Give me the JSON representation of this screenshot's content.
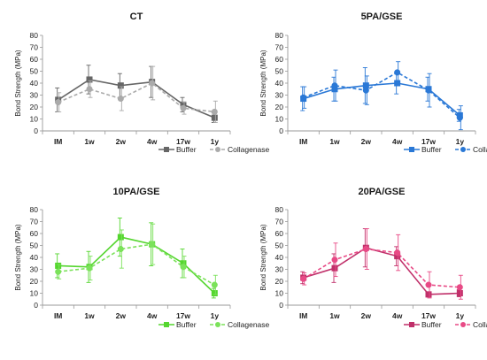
{
  "chart_data": [
    {
      "type": "line",
      "title": "CT",
      "ylabel": "Bond Strength (MPa)",
      "ylim": [
        0,
        80
      ],
      "yticks": [
        0,
        10,
        20,
        30,
        40,
        50,
        60,
        70,
        80
      ],
      "categories": [
        "IM",
        "1w",
        "2w",
        "4w",
        "17w",
        "1y"
      ],
      "series": [
        {
          "name": "Buffer",
          "color": "#666666",
          "marker": "square",
          "dashed": false,
          "values": [
            26,
            43,
            38,
            41,
            22,
            11
          ],
          "errors": [
            10,
            12,
            10,
            13,
            6,
            4
          ]
        },
        {
          "name": "Collagenase",
          "color": "#aaaaaa",
          "marker": "circle",
          "dashed": true,
          "values": [
            24,
            35,
            27,
            40,
            19,
            16
          ],
          "errors": [
            8,
            7,
            10,
            14,
            5,
            9
          ]
        }
      ]
    },
    {
      "type": "line",
      "title": "5PA/GSE",
      "ylabel": "Bond Strength (MPa)",
      "ylim": [
        0,
        80
      ],
      "yticks": [
        0,
        10,
        20,
        30,
        40,
        50,
        60,
        70,
        80
      ],
      "categories": [
        "IM",
        "1w",
        "2w",
        "4w",
        "17w",
        "1y"
      ],
      "series": [
        {
          "name": "Buffer",
          "color": "#2a78d6",
          "marker": "square",
          "dashed": false,
          "values": [
            27,
            35,
            38,
            40,
            35,
            13
          ],
          "errors": [
            10,
            10,
            15,
            9,
            10,
            5
          ]
        },
        {
          "name": "Collagenase",
          "color": "#2a78d6",
          "marker": "circle",
          "dashed": true,
          "values": [
            28,
            38,
            34,
            49,
            34,
            11
          ],
          "errors": [
            9,
            13,
            12,
            9,
            14,
            10
          ]
        }
      ]
    },
    {
      "type": "line",
      "title": "10PA/GSE",
      "ylabel": "Bond Strength (MPa)",
      "ylim": [
        0,
        80
      ],
      "yticks": [
        0,
        10,
        20,
        30,
        40,
        50,
        60,
        70,
        80
      ],
      "categories": [
        "IM",
        "1w",
        "2w",
        "4w",
        "17w",
        "1y"
      ],
      "series": [
        {
          "name": "Buffer",
          "color": "#55d62f",
          "marker": "square",
          "dashed": false,
          "values": [
            33,
            32,
            57,
            51,
            35,
            10
          ],
          "errors": [
            10,
            13,
            16,
            18,
            12,
            4
          ]
        },
        {
          "name": "Collagenase",
          "color": "#7be25a",
          "marker": "circle",
          "dashed": true,
          "values": [
            28,
            31,
            47,
            51,
            32,
            17
          ],
          "errors": [
            6,
            10,
            16,
            17,
            9,
            8
          ]
        }
      ]
    },
    {
      "type": "line",
      "title": "20PA/GSE",
      "ylabel": "Bond Strength (MPa)",
      "ylim": [
        0,
        80
      ],
      "yticks": [
        0,
        10,
        20,
        30,
        40,
        50,
        60,
        70,
        80
      ],
      "categories": [
        "IM",
        "1w",
        "2w",
        "4w",
        "17w",
        "1y"
      ],
      "series": [
        {
          "name": "Buffer",
          "color": "#c0306a",
          "marker": "square",
          "dashed": false,
          "values": [
            23,
            31,
            48,
            41,
            9,
            10
          ],
          "errors": [
            5,
            12,
            16,
            8,
            2,
            3
          ]
        },
        {
          "name": "Collagenase",
          "color": "#e84a86",
          "marker": "circle",
          "dashed": true,
          "values": [
            22,
            38,
            47,
            44,
            17,
            15
          ],
          "errors": [
            5,
            14,
            17,
            15,
            11,
            10
          ]
        }
      ]
    }
  ]
}
